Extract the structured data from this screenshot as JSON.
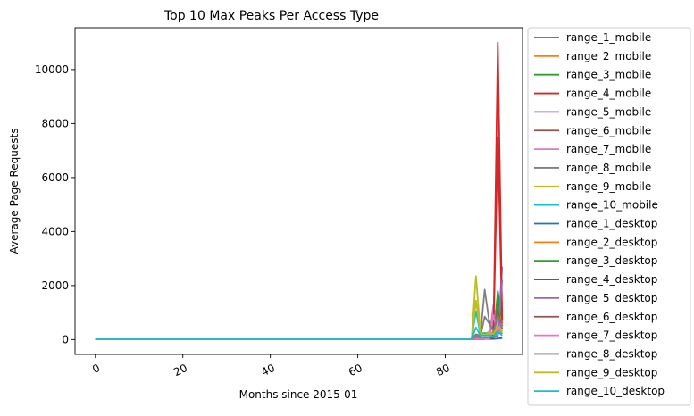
{
  "chart_data": {
    "type": "line",
    "title": "Top 10 Max Peaks Per Access Type",
    "xlabel": "Months since 2015-01",
    "ylabel": "Average Page Requests",
    "xlim": [
      -4.65,
      97.65
    ],
    "ylim": [
      -550,
      11550
    ],
    "xticks": [
      0,
      20,
      40,
      60,
      80
    ],
    "yticks": [
      0,
      2000,
      4000,
      6000,
      8000,
      10000
    ],
    "legend_position": "outside-right",
    "grid": false,
    "series": [
      {
        "name": "range_1_mobile",
        "color": "#1f77b4",
        "points": [
          [
            0,
            10
          ],
          [
            86,
            10
          ],
          [
            87,
            40
          ],
          [
            88,
            30
          ],
          [
            89,
            25
          ],
          [
            90,
            30
          ],
          [
            91,
            20
          ],
          [
            92,
            40
          ],
          [
            93,
            60
          ]
        ]
      },
      {
        "name": "range_2_mobile",
        "color": "#ff7f0e",
        "points": [
          [
            0,
            10
          ],
          [
            86,
            10
          ],
          [
            87,
            60
          ],
          [
            88,
            40
          ],
          [
            89,
            30
          ],
          [
            90,
            50
          ],
          [
            91,
            40
          ],
          [
            92,
            300
          ],
          [
            93,
            1400
          ]
        ]
      },
      {
        "name": "range_3_mobile",
        "color": "#2ca02c",
        "points": [
          [
            0,
            10
          ],
          [
            86,
            10
          ],
          [
            87,
            40
          ],
          [
            88,
            20
          ],
          [
            89,
            30
          ],
          [
            90,
            40
          ],
          [
            91,
            60
          ],
          [
            92,
            1800
          ],
          [
            93,
            600
          ]
        ]
      },
      {
        "name": "range_4_mobile",
        "color": "#d62728",
        "points": [
          [
            0,
            10
          ],
          [
            86,
            10
          ],
          [
            87,
            20
          ],
          [
            88,
            20
          ],
          [
            89,
            30
          ],
          [
            90,
            50
          ],
          [
            91,
            200
          ],
          [
            92,
            7500
          ],
          [
            93,
            500
          ]
        ]
      },
      {
        "name": "range_5_mobile",
        "color": "#9467bd",
        "points": [
          [
            0,
            10
          ],
          [
            86,
            10
          ],
          [
            87,
            30
          ],
          [
            88,
            20
          ],
          [
            89,
            20
          ],
          [
            90,
            40
          ],
          [
            91,
            100
          ],
          [
            92,
            200
          ],
          [
            93,
            2700
          ]
        ]
      },
      {
        "name": "range_6_mobile",
        "color": "#8c564b",
        "points": [
          [
            0,
            10
          ],
          [
            86,
            10
          ],
          [
            87,
            100
          ],
          [
            88,
            60
          ],
          [
            89,
            80
          ],
          [
            90,
            50
          ],
          [
            91,
            50
          ],
          [
            92,
            1500
          ],
          [
            93,
            500
          ]
        ]
      },
      {
        "name": "range_7_mobile",
        "color": "#e377c2",
        "points": [
          [
            0,
            10
          ],
          [
            86,
            10
          ],
          [
            87,
            50
          ],
          [
            88,
            30
          ],
          [
            89,
            30
          ],
          [
            90,
            40
          ],
          [
            91,
            1300
          ],
          [
            92,
            200
          ],
          [
            93,
            700
          ]
        ]
      },
      {
        "name": "range_8_mobile",
        "color": "#7f7f7f",
        "points": [
          [
            0,
            10
          ],
          [
            86,
            10
          ],
          [
            87,
            200
          ],
          [
            88,
            150
          ],
          [
            89,
            1850
          ],
          [
            90,
            700
          ],
          [
            91,
            400
          ],
          [
            92,
            1200
          ],
          [
            93,
            500
          ]
        ]
      },
      {
        "name": "range_9_mobile",
        "color": "#bcbd22",
        "points": [
          [
            0,
            10
          ],
          [
            86,
            10
          ],
          [
            87,
            2350
          ],
          [
            88,
            300
          ],
          [
            89,
            200
          ],
          [
            90,
            300
          ],
          [
            91,
            250
          ],
          [
            92,
            700
          ],
          [
            93,
            300
          ]
        ]
      },
      {
        "name": "range_10_mobile",
        "color": "#17becf",
        "points": [
          [
            0,
            10
          ],
          [
            86,
            10
          ],
          [
            87,
            1050
          ],
          [
            88,
            200
          ],
          [
            89,
            250
          ],
          [
            90,
            200
          ],
          [
            91,
            150
          ],
          [
            92,
            400
          ],
          [
            93,
            200
          ]
        ]
      },
      {
        "name": "range_1_desktop",
        "color": "#1f77b4",
        "points": [
          [
            0,
            10
          ],
          [
            86,
            10
          ],
          [
            87,
            30
          ],
          [
            88,
            20
          ],
          [
            89,
            20
          ],
          [
            90,
            25
          ],
          [
            91,
            20
          ],
          [
            92,
            40
          ],
          [
            93,
            50
          ]
        ]
      },
      {
        "name": "range_2_desktop",
        "color": "#ff7f0e",
        "points": [
          [
            0,
            10
          ],
          [
            86,
            10
          ],
          [
            87,
            50
          ],
          [
            88,
            40
          ],
          [
            89,
            30
          ],
          [
            90,
            40
          ],
          [
            91,
            40
          ],
          [
            92,
            250
          ],
          [
            93,
            1000
          ]
        ]
      },
      {
        "name": "range_3_desktop",
        "color": "#2ca02c",
        "points": [
          [
            0,
            10
          ],
          [
            86,
            10
          ],
          [
            87,
            30
          ],
          [
            88,
            20
          ],
          [
            89,
            25
          ],
          [
            90,
            30
          ],
          [
            91,
            50
          ],
          [
            92,
            1500
          ],
          [
            93,
            800
          ]
        ]
      },
      {
        "name": "range_4_desktop",
        "color": "#d62728",
        "points": [
          [
            0,
            10
          ],
          [
            86,
            10
          ],
          [
            87,
            20
          ],
          [
            88,
            20
          ],
          [
            89,
            20
          ],
          [
            90,
            40
          ],
          [
            91,
            150
          ],
          [
            92,
            11000
          ],
          [
            93,
            700
          ]
        ]
      },
      {
        "name": "range_5_desktop",
        "color": "#9467bd",
        "points": [
          [
            0,
            10
          ],
          [
            86,
            10
          ],
          [
            87,
            30
          ],
          [
            88,
            20
          ],
          [
            89,
            20
          ],
          [
            90,
            30
          ],
          [
            91,
            80
          ],
          [
            92,
            150
          ],
          [
            93,
            2200
          ]
        ]
      },
      {
        "name": "range_6_desktop",
        "color": "#8c564b",
        "points": [
          [
            0,
            10
          ],
          [
            86,
            10
          ],
          [
            87,
            80
          ],
          [
            88,
            50
          ],
          [
            89,
            60
          ],
          [
            90,
            50
          ],
          [
            91,
            40
          ],
          [
            92,
            1100
          ],
          [
            93,
            400
          ]
        ]
      },
      {
        "name": "range_7_desktop",
        "color": "#e377c2",
        "points": [
          [
            0,
            10
          ],
          [
            86,
            10
          ],
          [
            87,
            40
          ],
          [
            88,
            30
          ],
          [
            89,
            30
          ],
          [
            90,
            30
          ],
          [
            91,
            900
          ],
          [
            92,
            150
          ],
          [
            93,
            600
          ]
        ]
      },
      {
        "name": "range_8_desktop",
        "color": "#7f7f7f",
        "points": [
          [
            0,
            10
          ],
          [
            86,
            10
          ],
          [
            87,
            150
          ],
          [
            88,
            100
          ],
          [
            89,
            850
          ],
          [
            90,
            600
          ],
          [
            91,
            300
          ],
          [
            92,
            900
          ],
          [
            93,
            400
          ]
        ]
      },
      {
        "name": "range_9_desktop",
        "color": "#bcbd22",
        "points": [
          [
            0,
            10
          ],
          [
            86,
            10
          ],
          [
            87,
            1450
          ],
          [
            88,
            250
          ],
          [
            89,
            150
          ],
          [
            90,
            250
          ],
          [
            91,
            200
          ],
          [
            92,
            500
          ],
          [
            93,
            250
          ]
        ]
      },
      {
        "name": "range_10_desktop",
        "color": "#17becf",
        "points": [
          [
            0,
            10
          ],
          [
            86,
            10
          ],
          [
            87,
            450
          ],
          [
            88,
            150
          ],
          [
            89,
            150
          ],
          [
            90,
            150
          ],
          [
            91,
            100
          ],
          [
            92,
            300
          ],
          [
            93,
            150
          ]
        ]
      }
    ]
  }
}
